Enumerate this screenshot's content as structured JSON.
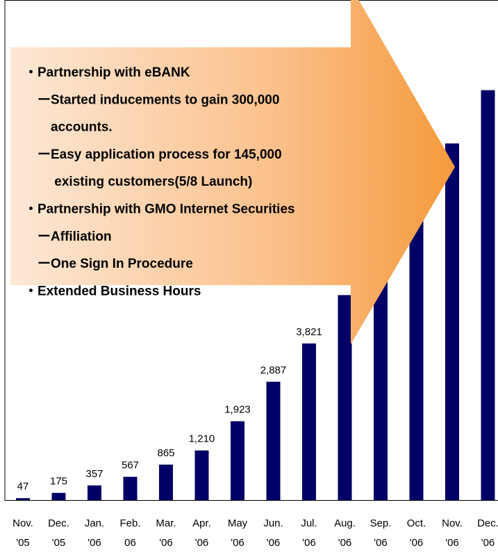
{
  "chart_data": {
    "type": "bar",
    "categories": [
      [
        "Nov.",
        "'05"
      ],
      [
        "Dec.",
        "'05"
      ],
      [
        "Jan.",
        "'06"
      ],
      [
        "Feb.",
        "06"
      ],
      [
        "Mar.",
        "'06"
      ],
      [
        "Apr.",
        "'06"
      ],
      [
        "May",
        "'06"
      ],
      [
        "Jun.",
        "'06"
      ],
      [
        "Jul.",
        "'06"
      ],
      [
        "Aug.",
        "'06"
      ],
      [
        "Sep.",
        "'06"
      ],
      [
        "Oct.",
        "'06"
      ],
      [
        "Nov.",
        "'06"
      ],
      [
        "Dec.",
        "'06"
      ]
    ],
    "values": [
      47,
      175,
      357,
      567,
      865,
      1210,
      1923,
      2887,
      3821,
      5000,
      5700,
      7400,
      8700,
      10000
    ],
    "value_labels": [
      "47",
      "175",
      "357",
      "567",
      "865",
      "1,210",
      "1,923",
      "2,887",
      "3,821",
      null,
      null,
      null,
      null,
      null
    ],
    "color": "#000066",
    "ylim": [
      0,
      12200
    ],
    "annotations": [
      "・Partnership with eBANK",
      "　ーStarted inducements to gain 300,000",
      "　　accounts.",
      "　ーEasy application process for 145,000",
      "　　 existing customers(5/8 Launch)",
      "・Partnership with GMO Internet Securities",
      "　ーAffiliation",
      "　ーOne Sign In Procedure",
      "・Extended Business Hours"
    ]
  }
}
